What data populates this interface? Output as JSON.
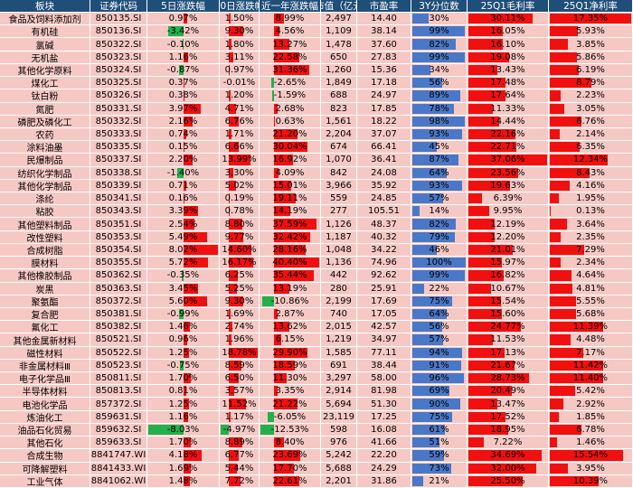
{
  "table": {
    "header": [
      "板块",
      "证券代码",
      "5日涨跌幅",
      "30日涨跌幅",
      "近一年涨跌幅",
      "市值（亿元",
      "市盈率",
      "3Y分位数",
      "25Q1毛利率",
      "25Q1净利率"
    ],
    "rows": [
      [
        "食品及饲料添加剂",
        "850135.SI",
        "0.97%",
        "1.50%",
        "8.99%",
        "2,497",
        "14.40",
        "30%",
        "30.11%",
        "17.35%"
      ],
      [
        "有机硅",
        "850136.SI",
        "-3.42%",
        "9.30%",
        "4.56%",
        "1,109",
        "38.14",
        "99%",
        "16.05%",
        "5.93%"
      ],
      [
        "氯碱",
        "850322.SI",
        "-0.10%",
        "1.80%",
        "13.27%",
        "1,478",
        "37.60",
        "82%",
        "16.10%",
        "3.85%"
      ],
      [
        "无机盐",
        "850323.SI",
        "1.16%",
        "3.11%",
        "22.58%",
        "650",
        "27.83",
        "99%",
        "19.08%",
        "5.86%"
      ],
      [
        "其他化学原料",
        "850324.SI",
        "-0.87%",
        "0.97%",
        "31.36%",
        "1,260",
        "15.36",
        "34%",
        "13.43%",
        "6.19%"
      ],
      [
        "煤化工",
        "850325.SI",
        "0.37%",
        "-0.01%",
        "-2.65%",
        "1,849",
        "17.18",
        "56%",
        "17.48%",
        "8.79%"
      ],
      [
        "钛白粉",
        "850326.SI",
        "0.38%",
        "1.20%",
        "-1.59%",
        "688",
        "24.97",
        "89%",
        "17.64%",
        "2.23%"
      ],
      [
        "氮肥",
        "850331.SI",
        "3.97%",
        "4.71%",
        "2.68%",
        "823",
        "17.85",
        "78%",
        "11.33%",
        "3.05%"
      ],
      [
        "磷肥及磷化工",
        "850332.SI",
        "2.16%",
        "6.76%",
        "0.63%",
        "1,561",
        "18.22",
        "98%",
        "14.44%",
        "6.76%"
      ],
      [
        "农药",
        "850333.SI",
        "0.74%",
        "1.71%",
        "21.20%",
        "2,204",
        "37.07",
        "93%",
        "22.16%",
        "2.14%"
      ],
      [
        "涂料油墨",
        "850335.SI",
        "0.15%",
        "6.66%",
        "30.04%",
        "674",
        "66.41",
        "45%",
        "22.71%",
        "6.35%"
      ],
      [
        "民爆制品",
        "850337.SI",
        "2.20%",
        "13.99%",
        "16.92%",
        "1,070",
        "36.41",
        "87%",
        "37.06%",
        "12.34%"
      ],
      [
        "纺织化学制品",
        "850338.SI",
        "-1.40%",
        "3.30%",
        "4.09%",
        "842",
        "24.08",
        "64%",
        "23.56%",
        "8.43%"
      ],
      [
        "其他化学制品",
        "850339.SI",
        "0.71%",
        "5.02%",
        "15.01%",
        "3,966",
        "35.92",
        "93%",
        "19.63%",
        "4.16%"
      ],
      [
        "涤纶",
        "850341.SI",
        "0.16%",
        "0.19%",
        "19.11%",
        "559",
        "24.85",
        "57%",
        "6.39%",
        "1.95%"
      ],
      [
        "粘胶",
        "850343.SI",
        "3.39%",
        "0.78%",
        "14.19%",
        "277",
        "105.51",
        "14%",
        "9.95%",
        "0.13%"
      ],
      [
        "其他塑料制品",
        "850351.SI",
        "2.54%",
        "8.80%",
        "37.59%",
        "1,126",
        "48.37",
        "82%",
        "12.19%",
        "3.64%"
      ],
      [
        "改性塑料",
        "850353.SI",
        "5.49%",
        "9.77%",
        "32.42%",
        "1,187",
        "40.32",
        "79%",
        "12.20%",
        "2.35%"
      ],
      [
        "合成树脂",
        "850354.SI",
        "8.02%",
        "14.60%",
        "28.16%",
        "1,048",
        "34.22",
        "46%",
        "21.01%",
        "7.29%"
      ],
      [
        "膜材料",
        "850355.SI",
        "5.72%",
        "16.17%",
        "40.40%",
        "1,136",
        "74.96",
        "100%",
        "15.97%",
        "2.34%"
      ],
      [
        "其他橡胶制品",
        "850362.SI",
        "-0.35%",
        "6.25%",
        "35.44%",
        "442",
        "92.62",
        "99%",
        "16.82%",
        "4.64%"
      ],
      [
        "炭黑",
        "850363.SI",
        "3.45%",
        "5.25%",
        "13.19%",
        "280",
        "25.91",
        "22%",
        "10.67%",
        "4.81%"
      ],
      [
        "聚氨酯",
        "850372.SI",
        "5.60%",
        "9.30%",
        "-10.86%",
        "2,199",
        "17.69",
        "75%",
        "15.54%",
        "5.55%"
      ],
      [
        "复合肥",
        "850381.SI",
        "-0.99%",
        "1.69%",
        "2.87%",
        "740",
        "17.05",
        "64%",
        "15.60%",
        "5.68%"
      ],
      [
        "氟化工",
        "850382.SI",
        "1.46%",
        "2.74%",
        "13.62%",
        "2,015",
        "42.57",
        "56%",
        "24.77%",
        "11.39%"
      ],
      [
        "其他金属新材料",
        "850521.SI",
        "0.96%",
        "1.96%",
        "6.15%",
        "1,219",
        "34.97",
        "57%",
        "11.53%",
        "4.48%"
      ],
      [
        "磁性材料",
        "850522.SI",
        "1.25%",
        "18.78%",
        "29.90%",
        "1,585",
        "77.11",
        "94%",
        "17.13%",
        "7.17%"
      ],
      [
        "非金属材料Ⅲ",
        "850523.SI",
        "-0.75%",
        "8.59%",
        "18.59%",
        "691",
        "38.44",
        "91%",
        "21.67%",
        "11.42%"
      ],
      [
        "电子化学品Ⅲ",
        "850811.SI",
        "1.70%",
        "6.50%",
        "11.30%",
        "3,297",
        "58.00",
        "96%",
        "28.73%",
        "11.40%"
      ],
      [
        "半导体材料",
        "850813.SI",
        "0.81%",
        "3.57%",
        "3.35%",
        "2,914",
        "81.98",
        "69%",
        "20.49%",
        "5.42%"
      ],
      [
        "电池化学品",
        "857372.SI",
        "1.25%",
        "11.52%",
        "21.22%",
        "5,694",
        "51.30",
        "90%",
        "13.47%",
        "2.92%"
      ],
      [
        "炼油化工",
        "859631.SI",
        "1.16%",
        "1.17%",
        "-6.05%",
        "23,119",
        "17.25",
        "75%",
        "17.52%",
        "1.85%"
      ],
      [
        "油品石化贸易",
        "859632.SI",
        "-8.03%",
        "-4.97%",
        "-12.53%",
        "598",
        "16.08",
        "61%",
        "18.95%",
        "6.78%"
      ],
      [
        "其他石化",
        "859633.SI",
        "1.70%",
        "8.89%",
        "8.40%",
        "976",
        "41.66",
        "51%",
        "7.22%",
        "1.46%"
      ],
      [
        "合成生物",
        "8841747.WI",
        "4.18%",
        "6.77%",
        "23.69%",
        "5,242",
        "22.20",
        "59%",
        "34.69%",
        "15.54%"
      ],
      [
        "可降解塑料",
        "8841433.WI",
        "1.69%",
        "5.44%",
        "17.70%",
        "5,688",
        "24.29",
        "73%",
        "32.00%",
        "3.95%"
      ],
      [
        "工业气体",
        "8841062.WI",
        "1.48%",
        "7.72%",
        "22.61%",
        "2,201",
        "31.86",
        "21%",
        "25.50%",
        "10.39%"
      ]
    ]
  }
}
